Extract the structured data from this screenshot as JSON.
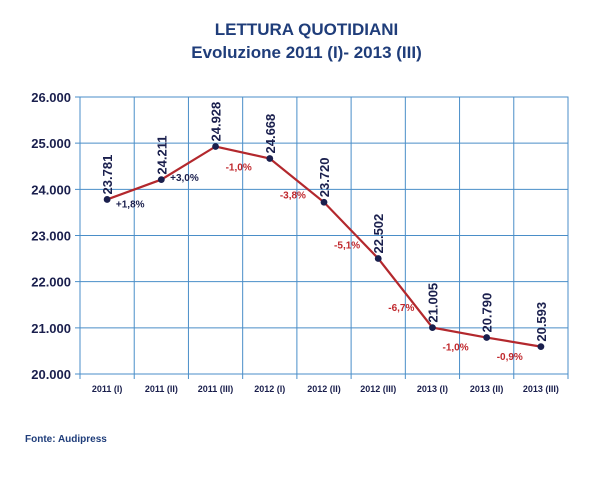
{
  "title": "LETTURA  QUOTIDIANI",
  "subtitle": "Evoluzione 2011 (I)- 2013 (III)",
  "source": "Fonte: Audipress",
  "colors": {
    "title": "#1f3d7a",
    "line": "#b3282d",
    "marker": "#1a1f4d",
    "grid": "#4a8ec8",
    "plot_bg": "#ffffff",
    "value_label": "#1a1f4d",
    "pos_change": "#1a1f4d",
    "neg_change": "#c0282d"
  },
  "chart_data": {
    "type": "line",
    "categories": [
      "2011 (I)",
      "2011 (II)",
      "2011 (III)",
      "2012 (I)",
      "2012 (II)",
      "2012 (III)",
      "2013 (I)",
      "2013 (II)",
      "2013 (III)"
    ],
    "values": [
      23781,
      24211,
      24928,
      24668,
      23720,
      22502,
      21005,
      20790,
      20593
    ],
    "value_labels": [
      "23.781",
      "24.211",
      "24.928",
      "24.668",
      "23.720",
      "22.502",
      "21.005",
      "20.790",
      "20.593"
    ],
    "changes": [
      "+1,8%",
      "+3,0%",
      "-1,0%",
      "-3,8%",
      "-5,1%",
      "-6,7%",
      "-1,0%",
      "-0,9%"
    ],
    "ylim": [
      20000,
      26000
    ],
    "yticks": [
      20000,
      21000,
      22000,
      23000,
      24000,
      25000,
      26000
    ],
    "ytick_labels": [
      "20.000",
      "21.000",
      "22.000",
      "23.000",
      "24.000",
      "25.000",
      "26.000"
    ],
    "grid": true,
    "legend": false
  }
}
